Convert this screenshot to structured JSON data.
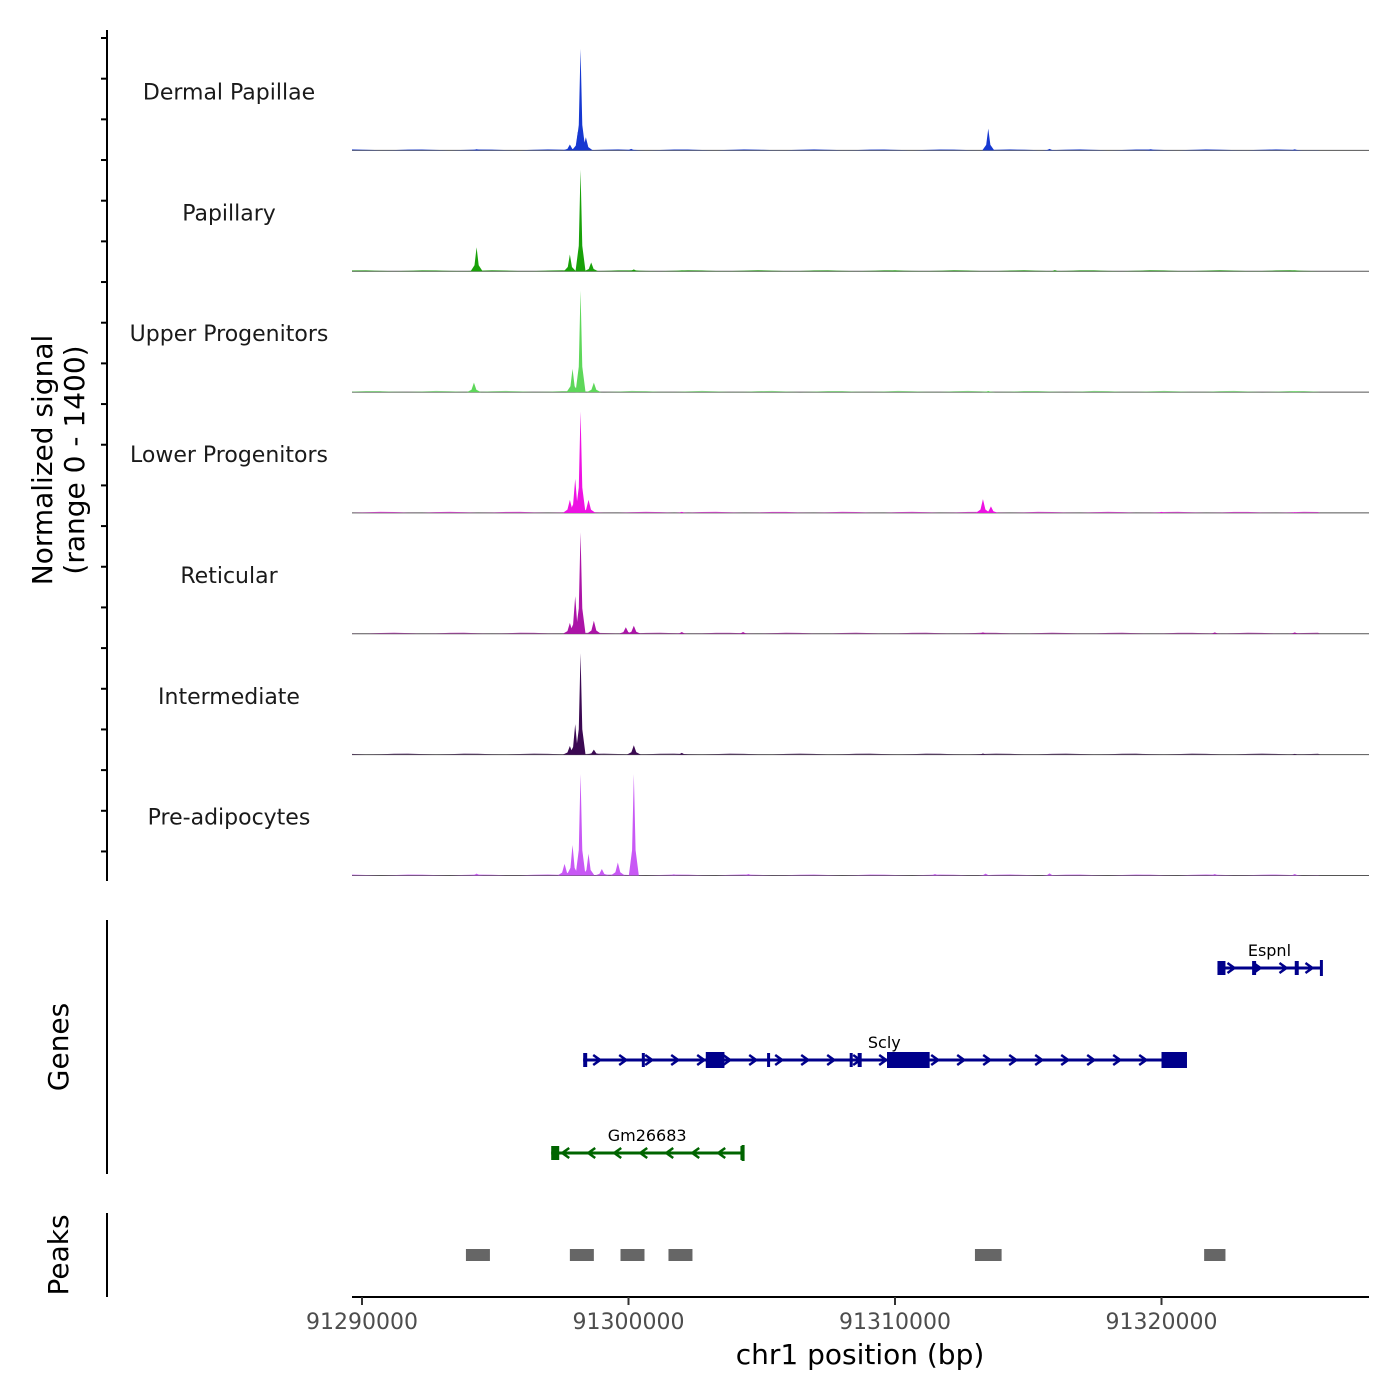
{
  "chart_data": [
    {
      "type": "area",
      "panel": "coverage",
      "ylabel_line1": "Normalized signal",
      "ylabel_line2": "(range 0 - 1400)",
      "ylim": [
        0,
        1400
      ],
      "xlim": [
        91289600,
        91327600
      ],
      "tracks": [
        {
          "name": "Dermal Papillae",
          "color": "#1638D1",
          "baseline": [
            [
              91294300,
              15
            ],
            [
              91297800,
              80
            ],
            [
              91298100,
              260
            ],
            [
              91298200,
              1400
            ],
            [
              91298400,
              180
            ],
            [
              91300100,
              20
            ],
            [
              91313500,
              300
            ],
            [
              91315800,
              20
            ],
            [
              91319600,
              15
            ],
            [
              91325000,
              15
            ]
          ]
        },
        {
          "name": "Papillary",
          "color": "#19A109",
          "baseline": [
            [
              91294300,
              330
            ],
            [
              91297800,
              230
            ],
            [
              91298200,
              1400
            ],
            [
              91298600,
              120
            ],
            [
              91300200,
              25
            ],
            [
              91302000,
              10
            ],
            [
              91310000,
              10
            ],
            [
              91316000,
              15
            ],
            [
              91325000,
              10
            ]
          ]
        },
        {
          "name": "Upper Progenitors",
          "color": "#5ED75A",
          "baseline": [
            [
              91294200,
              130
            ],
            [
              91297900,
              320
            ],
            [
              91298200,
              1400
            ],
            [
              91298700,
              130
            ],
            [
              91313500,
              15
            ],
            [
              91325000,
              10
            ]
          ]
        },
        {
          "name": "Lower Progenitors",
          "color": "#EE12E3",
          "baseline": [
            [
              91297800,
              180
            ],
            [
              91298000,
              470
            ],
            [
              91298200,
              1400
            ],
            [
              91298500,
              180
            ],
            [
              91313300,
              190
            ],
            [
              91313600,
              90
            ],
            [
              91302000,
              15
            ],
            [
              91320000,
              15
            ],
            [
              91325000,
              10
            ]
          ]
        },
        {
          "name": "Reticular",
          "color": "#AC14A7",
          "baseline": [
            [
              91297800,
              150
            ],
            [
              91298000,
              520
            ],
            [
              91298200,
              1400
            ],
            [
              91298700,
              180
            ],
            [
              91299900,
              90
            ],
            [
              91300200,
              110
            ],
            [
              91302000,
              25
            ],
            [
              91304300,
              25
            ],
            [
              91313300,
              20
            ],
            [
              91322000,
              20
            ],
            [
              91325000,
              20
            ]
          ]
        },
        {
          "name": "Intermediate",
          "color": "#3B0952",
          "baseline": [
            [
              91297800,
              120
            ],
            [
              91298000,
              420
            ],
            [
              91298200,
              1400
            ],
            [
              91298700,
              70
            ],
            [
              91300200,
              130
            ],
            [
              91302000,
              25
            ],
            [
              91313300,
              15
            ],
            [
              91325000,
              10
            ]
          ]
        },
        {
          "name": "Pre-adipocytes",
          "color": "#C858F5",
          "baseline": [
            [
              91294300,
              25
            ],
            [
              91297600,
              160
            ],
            [
              91297900,
              420
            ],
            [
              91298200,
              1400
            ],
            [
              91298500,
              300
            ],
            [
              91299000,
              90
            ],
            [
              91299600,
              180
            ],
            [
              91300200,
              1400
            ],
            [
              91301700,
              15
            ],
            [
              91304500,
              20
            ],
            [
              91311500,
              20
            ],
            [
              91313400,
              25
            ],
            [
              91315800,
              30
            ],
            [
              91322000,
              20
            ],
            [
              91325000,
              20
            ]
          ]
        }
      ]
    },
    {
      "type": "gene-track",
      "panel": "genes",
      "ylabel": "Genes",
      "genes": [
        {
          "name": "Espnl",
          "strand": "+",
          "color": "#00008B",
          "start": 91322100,
          "end": 91326000,
          "exons": [
            [
              91322100,
              91322400
            ],
            [
              91323400,
              91323550
            ],
            [
              91325000,
              91325150
            ]
          ]
        },
        {
          "name": "Scly",
          "strand": "+",
          "color": "#00008B",
          "start": 91298300,
          "end": 91320900,
          "exons": [
            [
              91298300,
              91298450
            ],
            [
              91300500,
              91300600
            ],
            [
              91302900,
              91303600
            ],
            [
              91305200,
              91305300
            ],
            [
              91308300,
              91308400
            ],
            [
              91308600,
              91308750
            ],
            [
              91309700,
              91311300
            ],
            [
              91320000,
              91320900
            ]
          ]
        },
        {
          "name": "Gm26683",
          "strand": "-",
          "color": "#006400",
          "start": 91297100,
          "end": 91304300,
          "exons": [
            [
              91297100,
              91297400
            ],
            [
              91304200,
              91304300
            ]
          ]
        }
      ]
    },
    {
      "type": "bar",
      "panel": "peaks",
      "ylabel": "Peaks",
      "color": "#666666",
      "peaks": [
        [
          91293900,
          91294800
        ],
        [
          91297800,
          91298700
        ],
        [
          91299700,
          91300600
        ],
        [
          91301500,
          91302400
        ],
        [
          91313000,
          91314000
        ],
        [
          91321600,
          91322400
        ]
      ]
    },
    {
      "type": "axis",
      "xlabel": "chr1 position (bp)",
      "ticks": [
        91290000,
        91300000,
        91310000,
        91320000
      ],
      "tick_labels": [
        "91290000",
        "91300000",
        "91310000",
        "91320000"
      ]
    }
  ]
}
